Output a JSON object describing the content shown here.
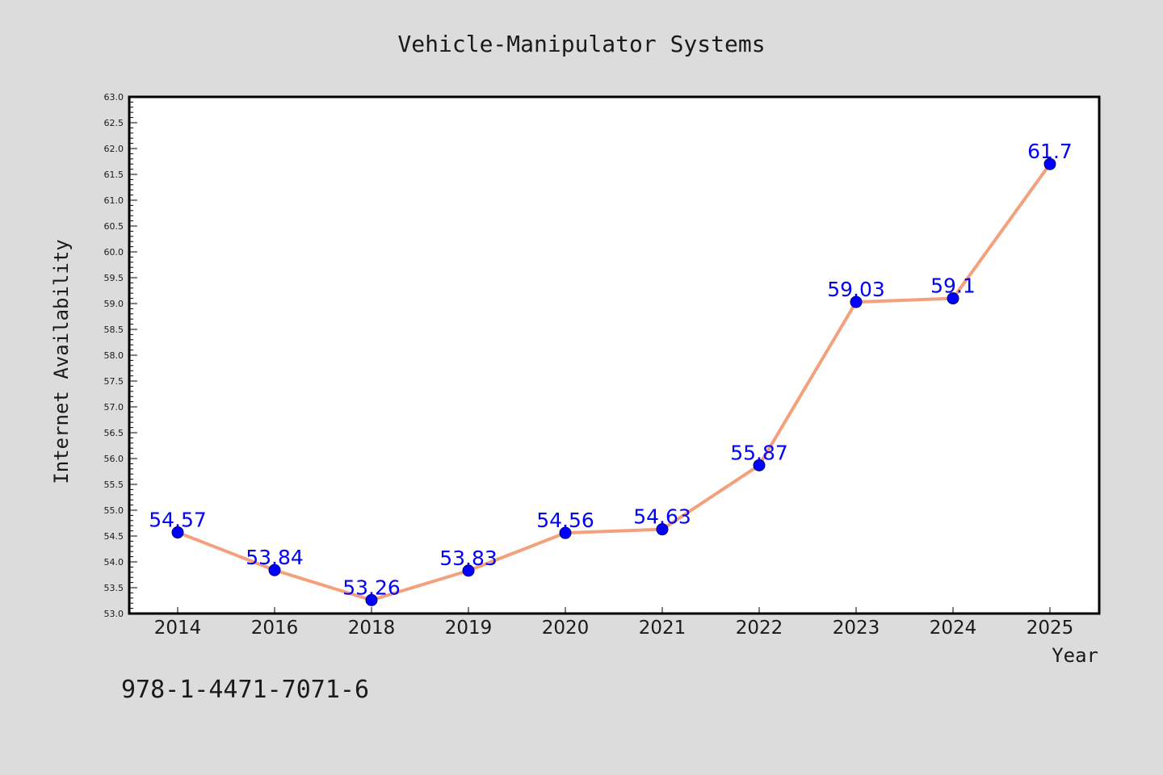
{
  "chart_data": {
    "type": "line",
    "title": "Vehicle-Manipulator Systems",
    "xlabel": "Year",
    "ylabel": "Internet Availability",
    "categories": [
      "2014",
      "2016",
      "2018",
      "2019",
      "2020",
      "2021",
      "2022",
      "2023",
      "2024",
      "2025"
    ],
    "series": [
      {
        "values": [
          54.57,
          53.84,
          53.26,
          53.83,
          54.56,
          54.63,
          55.87,
          59.03,
          59.1,
          61.7
        ]
      }
    ],
    "data_labels": [
      "54.57",
      "53.84",
      "53.26",
      "53.83",
      "54.56",
      "54.63",
      "55.87",
      "59.03",
      "59.1",
      "61.7"
    ],
    "ylim": [
      53.0,
      63.0
    ],
    "yticks": [
      "53.0",
      "53.5",
      "54.0",
      "54.5",
      "55.0",
      "55.5",
      "56.0",
      "56.5",
      "57.0",
      "57.5",
      "58.0",
      "58.5",
      "59.0",
      "59.5",
      "60.0",
      "60.5",
      "61.0",
      "61.5",
      "62.0",
      "62.5",
      "63.0"
    ],
    "grid": false,
    "line_color": "#f4a07c",
    "marker_color": "#0000ff",
    "label_color": "#0000ff",
    "background_color": "#dcdcdc",
    "plot_background": "#ffffff"
  },
  "footer": {
    "text": "978-1-4471-7071-6"
  }
}
